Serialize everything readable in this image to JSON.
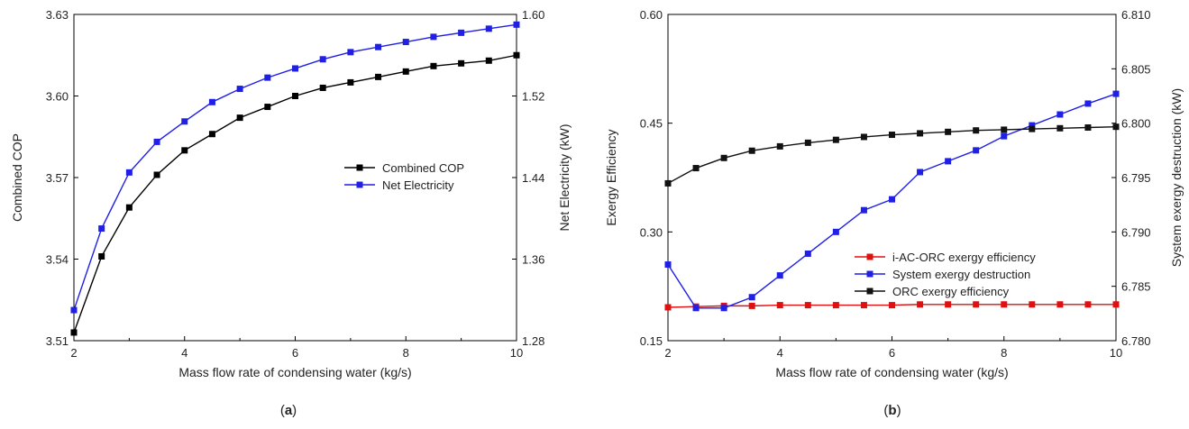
{
  "chart_data": [
    {
      "type": "line",
      "panel_label": {
        "open": "(",
        "letter": "a",
        "close": ")"
      },
      "xlabel": "Mass flow rate of condensing water (kg/s)",
      "ylabel_left": "Combined COP",
      "ylabel_right": "Net Electricity (kW)",
      "xlim": [
        2,
        10
      ],
      "ylim_left": [
        3.51,
        3.63
      ],
      "ylim_right": [
        1.28,
        1.6
      ],
      "x_ticks": [
        "2",
        "4",
        "6",
        "8",
        "10"
      ],
      "y_left_ticks": [
        "3.51",
        "3.54",
        "3.57",
        "3.60",
        "3.63"
      ],
      "y_right_ticks": [
        "1.28",
        "1.36",
        "1.44",
        "1.52",
        "1.60"
      ],
      "legend_position": "center-right",
      "x": [
        2,
        2.5,
        3,
        3.5,
        4,
        4.5,
        5,
        5.5,
        6,
        6.5,
        7,
        7.5,
        8,
        8.5,
        9,
        9.5,
        10
      ],
      "series": [
        {
          "name": "Combined COP",
          "axis": "left",
          "color": "#000000",
          "values": [
            3.513,
            3.541,
            3.559,
            3.571,
            3.58,
            3.586,
            3.592,
            3.596,
            3.6,
            3.603,
            3.605,
            3.607,
            3.609,
            3.611,
            3.612,
            3.613,
            3.615
          ]
        },
        {
          "name": "Net Electricity",
          "axis": "right",
          "color": "#1f1fe6",
          "values": [
            1.31,
            1.39,
            1.445,
            1.475,
            1.495,
            1.514,
            1.527,
            1.538,
            1.547,
            1.556,
            1.563,
            1.568,
            1.573,
            1.578,
            1.582,
            1.586,
            1.59
          ]
        }
      ]
    },
    {
      "type": "line",
      "panel_label": {
        "open": "(",
        "letter": "b",
        "close": ")"
      },
      "xlabel": "Mass flow rate of condensing water (kg/s)",
      "ylabel_left": "Exergy Efficiency",
      "ylabel_right": "System exergy destruction (kW)",
      "xlim": [
        2,
        10
      ],
      "ylim_left": [
        0.15,
        0.6
      ],
      "ylim_right": [
        6.78,
        6.81
      ],
      "x_ticks": [
        "2",
        "4",
        "6",
        "8",
        "10"
      ],
      "y_left_ticks": [
        "0.15",
        "0.30",
        "0.45",
        "0.60"
      ],
      "y_right_ticks": [
        "6.780",
        "6.785",
        "6.790",
        "6.795",
        "6.800",
        "6.805",
        "6.810"
      ],
      "legend_position": "center-right",
      "x": [
        2,
        2.5,
        3,
        3.5,
        4,
        4.5,
        5,
        5.5,
        6,
        6.5,
        7,
        7.5,
        8,
        8.5,
        9,
        9.5,
        10
      ],
      "series": [
        {
          "name": "i-AC-ORC exergy efficiency",
          "axis": "left",
          "color": "#e01010",
          "values": [
            0.196,
            0.197,
            0.198,
            0.198,
            0.199,
            0.199,
            0.199,
            0.199,
            0.199,
            0.2,
            0.2,
            0.2,
            0.2,
            0.2,
            0.2,
            0.2,
            0.2
          ]
        },
        {
          "name": "System exergy destruction",
          "axis": "right",
          "color": "#1f1fe6",
          "values": [
            6.787,
            6.783,
            6.783,
            6.784,
            6.786,
            6.788,
            6.79,
            6.792,
            6.793,
            6.7955,
            6.7965,
            6.7975,
            6.7988,
            6.7998,
            6.8008,
            6.8018,
            6.8027
          ]
        },
        {
          "name": "ORC exergy efficiency",
          "axis": "left",
          "color": "#111111",
          "values": [
            0.367,
            0.388,
            0.402,
            0.412,
            0.418,
            0.423,
            0.427,
            0.431,
            0.434,
            0.436,
            0.438,
            0.44,
            0.441,
            0.442,
            0.443,
            0.444,
            0.445
          ]
        }
      ]
    }
  ]
}
